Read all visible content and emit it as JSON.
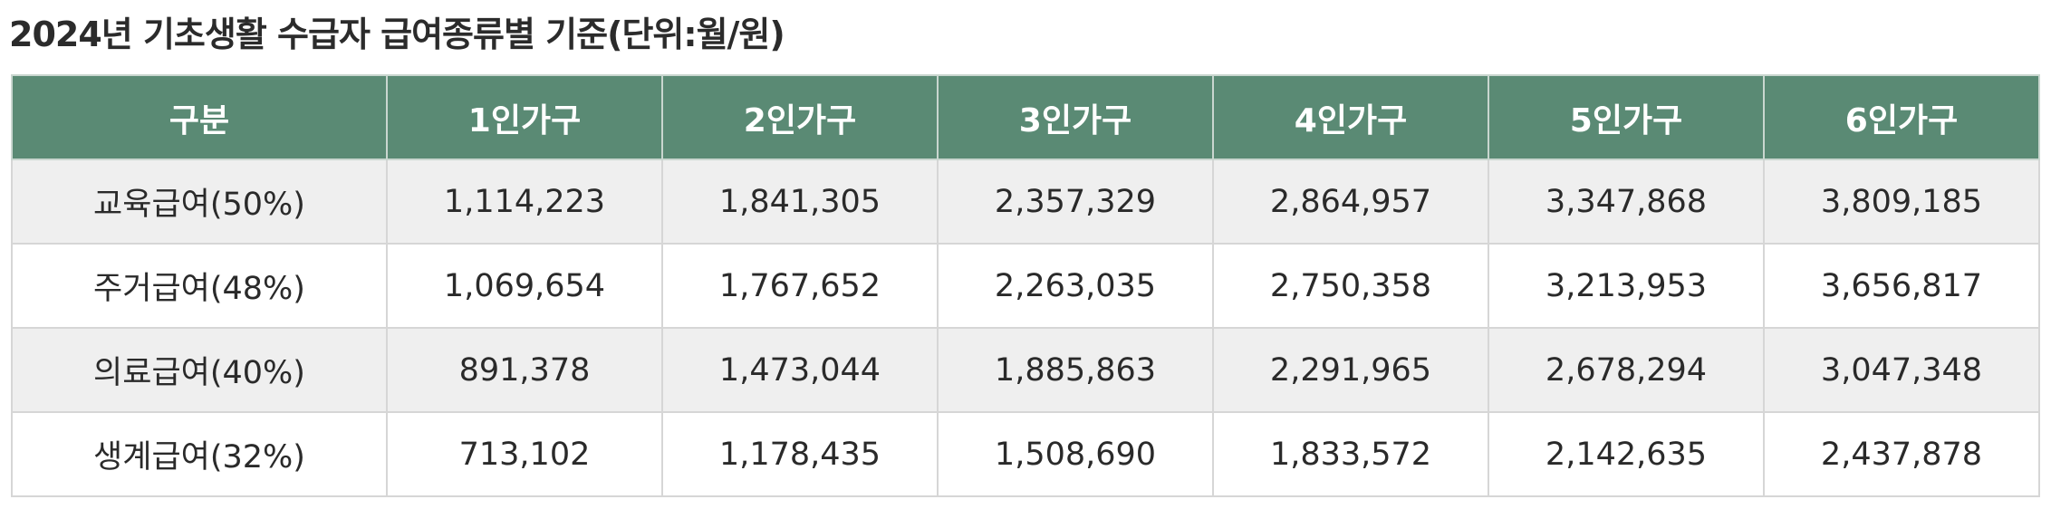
{
  "title": "2024년 기초생활 수급자 급여종류별 기준(단위:월/원)",
  "colors": {
    "header_bg": "#5a8a74",
    "header_text": "#ffffff",
    "row_shade": "#efefef",
    "border": "#d6d6d6"
  },
  "table": {
    "headers": [
      "구분",
      "1인가구",
      "2인가구",
      "3인가구",
      "4인가구",
      "5인가구",
      "6인가구"
    ],
    "rows": [
      {
        "label": "교육급여(50%)",
        "values": [
          "1,114,223",
          "1,841,305",
          "2,357,329",
          "2,864,957",
          "3,347,868",
          "3,809,185"
        ]
      },
      {
        "label": "주거급여(48%)",
        "values": [
          "1,069,654",
          "1,767,652",
          "2,263,035",
          "2,750,358",
          "3,213,953",
          "3,656,817"
        ]
      },
      {
        "label": "의료급여(40%)",
        "values": [
          "891,378",
          "1,473,044",
          "1,885,863",
          "2,291,965",
          "2,678,294",
          "3,047,348"
        ]
      },
      {
        "label": "생계급여(32%)",
        "values": [
          "713,102",
          "1,178,435",
          "1,508,690",
          "1,833,572",
          "2,142,635",
          "2,437,878"
        ]
      }
    ]
  }
}
